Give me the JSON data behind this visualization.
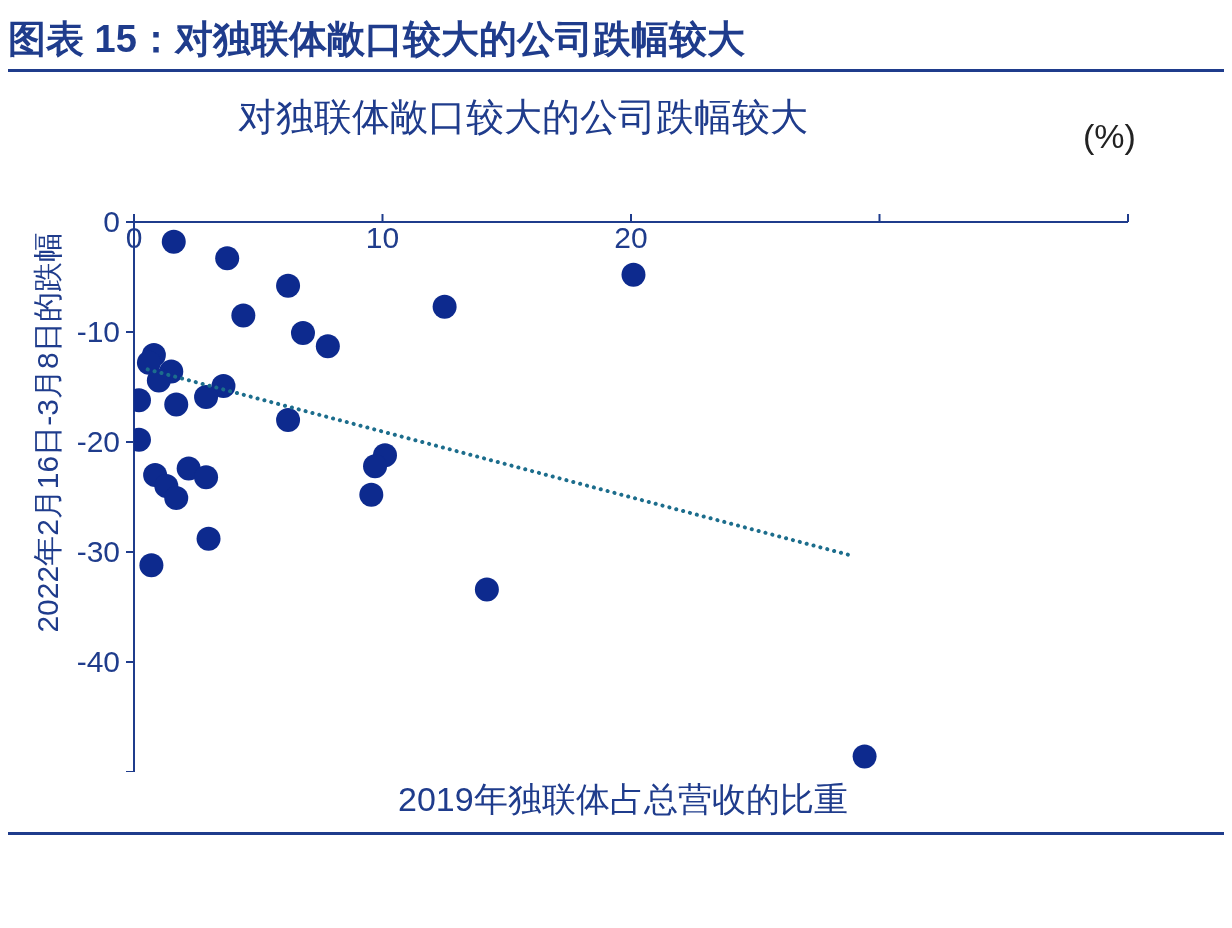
{
  "chart_data": {
    "type": "scatter",
    "title": "图表 15：对独联体敞口较大的公司跌幅较大",
    "subtitle": "对独联体敞口较大的公司跌幅较大",
    "xlabel": "2019年独联体占总营收的比重",
    "ylabel": "2022年2月16日-3月8日的跌幅",
    "annotations": [
      "(%)"
    ],
    "series": [
      {
        "type": "scatter",
        "color": "#0d2a8e",
        "x": [
          1.6,
          3.75,
          6.2,
          20.1,
          4.4,
          12.5,
          6.8,
          7.8,
          0.8,
          0.6,
          1.5,
          1.0,
          3.6,
          2.9,
          0.2,
          1.7,
          6.2,
          0.2,
          10.1,
          9.7,
          2.2,
          0.85,
          2.9,
          1.3,
          1.7,
          9.55,
          3.0,
          0.7,
          14.2,
          29.4
        ],
        "values": [
          -1.8,
          -3.3,
          -5.8,
          -4.8,
          -8.5,
          -7.7,
          -10.1,
          -11.3,
          -12.1,
          -12.8,
          -13.6,
          -14.4,
          -14.9,
          -15.9,
          -16.2,
          -16.6,
          -18.0,
          -19.8,
          -21.2,
          -22.2,
          -22.4,
          -23.0,
          -23.2,
          -24.0,
          -25.1,
          -24.8,
          -28.8,
          -31.2,
          -33.4,
          -48.6
        ],
        "marker": "circle"
      },
      {
        "type": "line",
        "color": "#1c6d8c",
        "x": [
          0.55,
          29.0
        ],
        "values": [
          -13.4,
          -30.4
        ],
        "line_style": "dotted",
        "marker": "none"
      }
    ],
    "xlim": [
      0,
      40
    ],
    "xticks": [
      0,
      10,
      20,
      {
        "value": 30,
        "label": null
      },
      {
        "value": 40,
        "label": null
      }
    ],
    "ylim": [
      -50,
      0
    ],
    "yticks": [
      {
        "value": -50,
        "label": null
      },
      -40,
      -30,
      -20,
      -10,
      0
    ],
    "grid": false,
    "legend": false
  }
}
